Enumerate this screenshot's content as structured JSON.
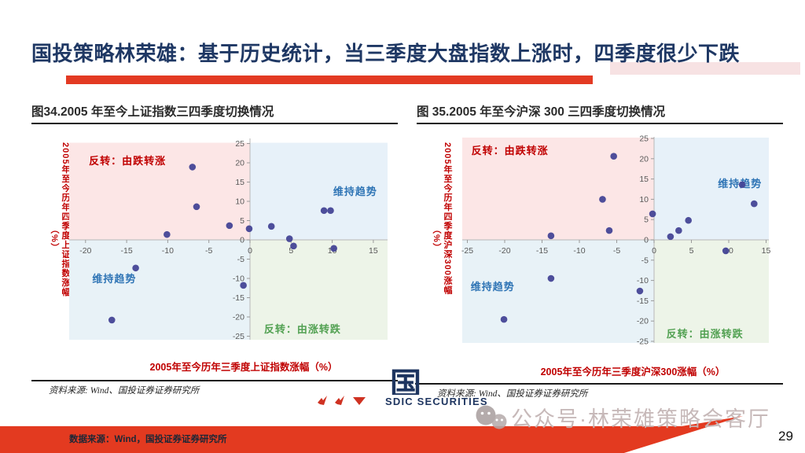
{
  "slide": {
    "title": "国投策略林荣雄：基于历史统计，当三季度大盘指数上涨时，四季度很少下跌",
    "page_number": "29",
    "footer_source": "数据来源：Wind，国投证券证券研究所",
    "watermark": "公众号·林荣雄策略会客厅",
    "logo": {
      "cn": "国投",
      "en": "SDIC SECURITIES"
    }
  },
  "sources": {
    "left": "资料来源: Wind、国投证券证券研究所",
    "right": "资料来源: Wind、国投证券证券研究所"
  },
  "colors": {
    "accent_red": "#e33a23",
    "title_navy": "#1f3864",
    "quad_pink": "#fce6e6",
    "quad_blue": "#e7f1f9",
    "quad_blue2": "#e8f2f7",
    "quad_green": "#edf4e8",
    "point": "#454496",
    "label_red": "#c00000",
    "label_blue": "#2e74b5",
    "label_green": "#52a152",
    "tick_gray": "#595959",
    "footer_red": "#e33a20"
  },
  "chart_data": [
    {
      "type": "scatter",
      "title": "图34.2005 年至今上证指数三四季度切换情况",
      "xlabel": "2005年至今历年三季度上证指数涨幅（%）",
      "ylabel": "2005年至今历年四季度上证指数涨幅",
      "ylabel_unit": "（%）",
      "xlim": [
        -21.8,
        16.7
      ],
      "ylim": [
        -26,
        26.3
      ],
      "x_ticks": [
        -20,
        -15,
        -10,
        -5,
        0,
        5,
        10,
        15
      ],
      "y_ticks": [
        25,
        20,
        15,
        10,
        5,
        0,
        -5,
        -10,
        -15,
        -20,
        -25
      ],
      "grid": false,
      "quadrant_labels": {
        "top_left": "反转：由跌转涨",
        "top_right": "维持趋势",
        "bottom_left": "维持趋势",
        "bottom_right": "反转：由涨转跌"
      },
      "points": [
        [
          -16.8,
          -20.8
        ],
        [
          -13.9,
          -7.3
        ],
        [
          -10.1,
          1.4
        ],
        [
          -7.0,
          18.9
        ],
        [
          -6.5,
          8.6
        ],
        [
          -2.5,
          3.7
        ],
        [
          -0.8,
          -11.8
        ],
        [
          -0.1,
          2.9
        ],
        [
          2.6,
          3.5
        ],
        [
          4.8,
          0.3
        ],
        [
          5.3,
          -1.6
        ],
        [
          9.0,
          7.6
        ],
        [
          9.8,
          7.6
        ],
        [
          10.2,
          -2.2
        ]
      ]
    },
    {
      "type": "scatter",
      "title": "图 35.2005 年至今沪深 300 三四季度切换情况",
      "xlabel": "2005年至今历年三季度沪深300涨幅（%）",
      "ylabel": "2005年至今历年四季度沪深300涨幅",
      "ylabel_unit": "（%）",
      "xlim": [
        -25.7,
        15.4
      ],
      "ylim": [
        -25.5,
        25.5
      ],
      "x_ticks": [
        -25,
        -20,
        -15,
        -10,
        -5,
        0,
        5,
        10,
        15
      ],
      "y_ticks": [
        25,
        20,
        15,
        10,
        5,
        0,
        -5,
        -10,
        -15,
        -20,
        -25
      ],
      "grid": false,
      "quadrant_labels": {
        "top_left": "反转：由跌转涨",
        "top_right": "维持趋势",
        "bottom_left": "维持趋势",
        "bottom_right": "反转：由涨转跌"
      },
      "points": [
        [
          -20.1,
          -19.6
        ],
        [
          -13.8,
          -9.5
        ],
        [
          -13.8,
          1.0
        ],
        [
          -6.9,
          10.0
        ],
        [
          -6.0,
          2.3
        ],
        [
          -5.4,
          20.6
        ],
        [
          -1.9,
          -12.6
        ],
        [
          -0.2,
          6.4
        ],
        [
          2.2,
          0.8
        ],
        [
          3.3,
          2.3
        ],
        [
          4.6,
          4.8
        ],
        [
          9.6,
          -2.7
        ],
        [
          11.8,
          13.6
        ],
        [
          13.4,
          8.9
        ]
      ]
    }
  ]
}
